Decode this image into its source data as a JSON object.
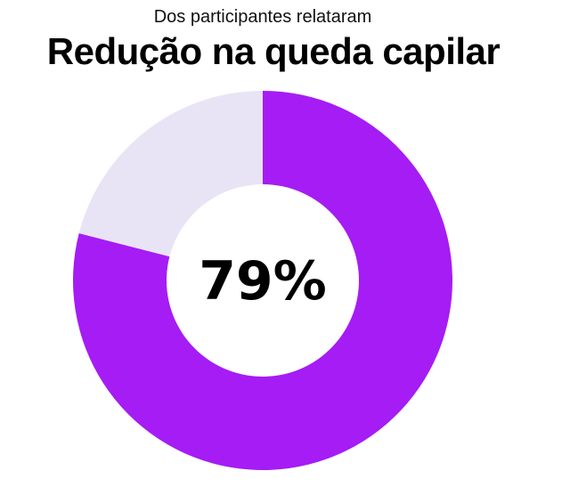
{
  "header": {
    "subtitle": "Dos participantes relataram",
    "title": "Redução na queda capilar"
  },
  "chart_data": {
    "type": "pie",
    "categories": [
      "Redução na queda capilar",
      ""
    ],
    "values": [
      79,
      21
    ],
    "center_label": "79%",
    "colors": [
      "#a51cf4",
      "#e8e4f6"
    ]
  }
}
